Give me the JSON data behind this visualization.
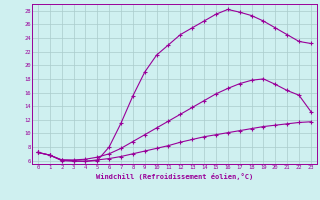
{
  "xlabel": "Windchill (Refroidissement éolien,°C)",
  "bg_color": "#cff0f0",
  "line_color": "#990099",
  "grid_color": "#aacccc",
  "xlim": [
    -0.5,
    23.5
  ],
  "ylim": [
    5.5,
    29
  ],
  "yticks": [
    6,
    8,
    10,
    12,
    14,
    16,
    18,
    20,
    22,
    24,
    26,
    28
  ],
  "xticks": [
    0,
    1,
    2,
    3,
    4,
    5,
    6,
    7,
    8,
    9,
    10,
    11,
    12,
    13,
    14,
    15,
    16,
    17,
    18,
    19,
    20,
    21,
    22,
    23
  ],
  "curve1_x": [
    0,
    1,
    2,
    3,
    4,
    5,
    6,
    7,
    8,
    9,
    10,
    11,
    12,
    13,
    14,
    15,
    16,
    17,
    18,
    19,
    20,
    21,
    22,
    23
  ],
  "curve1_y": [
    7.2,
    6.8,
    6.0,
    5.9,
    5.9,
    6.1,
    6.3,
    6.6,
    7.0,
    7.4,
    7.8,
    8.2,
    8.7,
    9.1,
    9.5,
    9.8,
    10.1,
    10.4,
    10.7,
    11.0,
    11.2,
    11.4,
    11.6,
    11.7
  ],
  "curve2_x": [
    0,
    1,
    2,
    3,
    4,
    5,
    6,
    7,
    8,
    9,
    10,
    11,
    12,
    13,
    14,
    15,
    16,
    17,
    18,
    19,
    20,
    21,
    22,
    23
  ],
  "curve2_y": [
    7.2,
    6.8,
    6.1,
    6.1,
    6.2,
    6.5,
    7.0,
    7.8,
    8.8,
    9.8,
    10.8,
    11.8,
    12.8,
    13.8,
    14.8,
    15.8,
    16.6,
    17.3,
    17.8,
    18.0,
    17.2,
    16.3,
    15.6,
    13.2
  ],
  "curve3_x": [
    0,
    1,
    2,
    3,
    4,
    5,
    6,
    7,
    8,
    9,
    10,
    11,
    12,
    13,
    14,
    15,
    16,
    17,
    18,
    19,
    20,
    21,
    22,
    23
  ],
  "curve3_y": [
    7.2,
    6.8,
    6.1,
    6.0,
    5.9,
    6.0,
    8.0,
    11.5,
    15.5,
    19.0,
    21.5,
    23.0,
    24.5,
    25.5,
    26.5,
    27.5,
    28.2,
    27.8,
    27.3,
    26.5,
    25.5,
    24.5,
    23.5,
    23.2
  ]
}
